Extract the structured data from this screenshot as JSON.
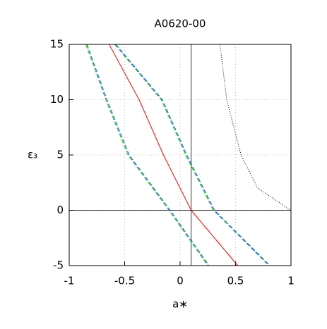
{
  "chart_data": {
    "type": "line",
    "title": "A0620-00",
    "x_label": "a∗",
    "y_label": "ε₃",
    "xlim": [
      -1,
      1
    ],
    "ylim": [
      -5,
      15
    ],
    "xticks": [
      -1,
      -0.5,
      0,
      0.5,
      1
    ],
    "yticks": [
      -5,
      0,
      5,
      10,
      15
    ],
    "grid": true,
    "vlines": [
      0.1
    ],
    "hlines": [
      0
    ],
    "series": [
      {
        "color": "#ff0000",
        "dash": "solid",
        "x": [
          -0.64,
          -0.37,
          -0.15,
          0.1,
          0.52
        ],
        "values": [
          15,
          10,
          5,
          0,
          -5
        ]
      },
      {
        "color": "#00cc00",
        "dash": "dashed",
        "x": [
          -0.85,
          -0.67,
          -0.47,
          -0.1,
          0.25
        ],
        "values": [
          15,
          10,
          5,
          0,
          -5
        ]
      },
      {
        "color": "#0044ff",
        "dash": "dashed",
        "x": [
          -0.84,
          -0.66,
          -0.46,
          -0.09,
          0.26
        ],
        "values": [
          15,
          10,
          5,
          0,
          -5
        ]
      },
      {
        "color": "#00cc00",
        "dash": "dashed",
        "x": [
          -0.59,
          -0.17,
          0.05,
          0.3,
          0.8
        ],
        "values": [
          15,
          10,
          5,
          0,
          -5
        ]
      },
      {
        "color": "#0044ff",
        "dash": "dashed",
        "x": [
          -0.58,
          -0.16,
          0.06,
          0.31,
          0.81
        ],
        "values": [
          15,
          10,
          5,
          0,
          -5
        ]
      },
      {
        "color": "#000000",
        "dash": "dotted",
        "x": [
          0.36,
          0.42,
          0.55,
          0.7,
          1
        ],
        "values": [
          15,
          10,
          5,
          2,
          0
        ]
      }
    ]
  }
}
